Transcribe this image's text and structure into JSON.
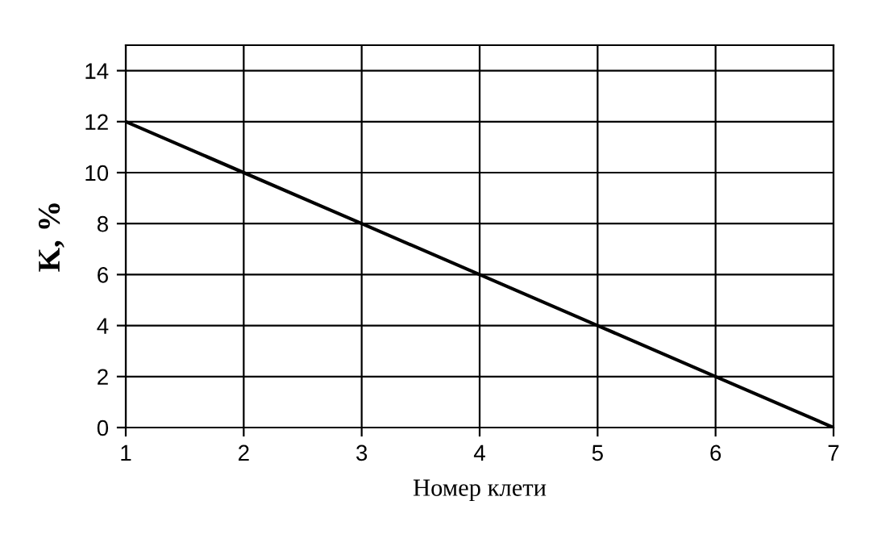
{
  "chart_data": {
    "type": "line",
    "xlabel": "Номер клети",
    "ylabel": "K, %",
    "x": [
      1,
      2,
      3,
      4,
      5,
      6,
      7
    ],
    "series": [
      {
        "color": "#000000",
        "values": [
          12,
          10,
          8,
          6,
          4,
          2,
          0
        ]
      }
    ],
    "xlim": [
      1,
      7
    ],
    "xticks": [
      1,
      2,
      3,
      4,
      5,
      6,
      7
    ],
    "ylim": [
      0,
      15
    ],
    "yticks": [
      0,
      2,
      4,
      6,
      8,
      10,
      12,
      14
    ],
    "grid": true,
    "marker": "none",
    "line_style": "solid"
  }
}
